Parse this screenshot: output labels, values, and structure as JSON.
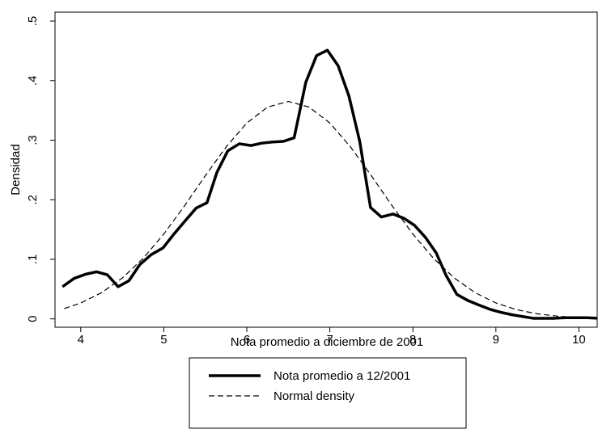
{
  "chart_data": {
    "type": "line",
    "x_label": "Nota promedio a diciembre de 2001",
    "y_label": "Densidad",
    "xlim": [
      3.69,
      10.22
    ],
    "ylim": [
      -0.014,
      0.515
    ],
    "xticks": [
      4,
      5,
      6,
      7,
      8,
      9,
      10
    ],
    "yticks": [
      0,
      {
        "value": 0.1,
        "label": ".1"
      },
      {
        "value": 0.2,
        "label": ".2"
      },
      {
        "value": 0.3,
        "label": ".3"
      },
      {
        "value": 0.4,
        "label": ".4"
      },
      {
        "value": 0.5,
        "label": ".5"
      }
    ],
    "grid": false,
    "legend": "bottom",
    "series": [
      {
        "name": "Nota promedio a 12/2001",
        "color": "#000000",
        "style": "solid",
        "x": [
          3.78,
          3.92,
          4.06,
          4.19,
          4.32,
          4.45,
          4.58,
          4.71,
          4.85,
          4.99,
          5.12,
          5.26,
          5.39,
          5.52,
          5.64,
          5.77,
          5.91,
          6.05,
          6.18,
          6.31,
          6.44,
          6.57,
          6.71,
          6.84,
          6.97,
          7.1,
          7.23,
          7.36,
          7.49,
          7.62,
          7.76,
          7.89,
          8.02,
          8.15,
          8.28,
          8.4,
          8.53,
          8.66,
          8.8,
          8.93,
          9.06,
          9.19,
          9.32,
          9.45,
          9.58,
          9.71,
          9.84,
          9.97,
          10.1,
          10.22
        ],
        "values": [
          0.054,
          0.068,
          0.075,
          0.079,
          0.074,
          0.054,
          0.064,
          0.091,
          0.108,
          0.119,
          0.142,
          0.165,
          0.186,
          0.195,
          0.246,
          0.282,
          0.294,
          0.291,
          0.295,
          0.297,
          0.298,
          0.304,
          0.397,
          0.442,
          0.451,
          0.425,
          0.374,
          0.298,
          0.187,
          0.171,
          0.176,
          0.169,
          0.157,
          0.137,
          0.111,
          0.073,
          0.041,
          0.031,
          0.023,
          0.016,
          0.011,
          0.007,
          0.004,
          0.001,
          0.001,
          0.001,
          0.002,
          0.002,
          0.002,
          0.001
        ]
      },
      {
        "name": "Normal density",
        "color": "#000000",
        "style": "dashed",
        "x": [
          3.8,
          4.0,
          4.25,
          4.5,
          4.75,
          5.0,
          5.25,
          5.5,
          5.75,
          6.0,
          6.25,
          6.5,
          6.75,
          7.0,
          7.25,
          7.5,
          7.75,
          8.0,
          8.25,
          8.5,
          8.75,
          9.0,
          9.25,
          9.5,
          9.75,
          10.0,
          10.22
        ],
        "values": [
          0.0173,
          0.0267,
          0.0439,
          0.0685,
          0.1014,
          0.1424,
          0.1898,
          0.2403,
          0.2885,
          0.3288,
          0.3556,
          0.365,
          0.3556,
          0.3288,
          0.2885,
          0.2403,
          0.1898,
          0.1424,
          0.1014,
          0.0685,
          0.0439,
          0.0267,
          0.0154,
          0.0084,
          0.0044,
          0.0022,
          0.0011
        ]
      }
    ]
  }
}
